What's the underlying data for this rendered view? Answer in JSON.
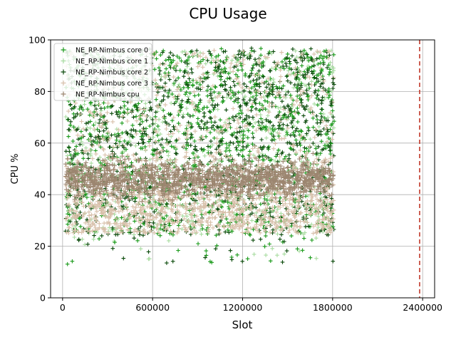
{
  "chart_data": {
    "type": "scatter",
    "title": "CPU Usage",
    "xlabel": "Slot",
    "ylabel": "CPU %",
    "xlim": [
      -80000,
      2480000
    ],
    "ylim": [
      0,
      100
    ],
    "xticks": [
      0,
      600000,
      1200000,
      1800000,
      2400000
    ],
    "xtick_labels": [
      "0",
      "600000",
      "1200000",
      "1800000",
      "2400000"
    ],
    "yticks": [
      0,
      20,
      40,
      60,
      80,
      100
    ],
    "ytick_labels": [
      "0",
      "20",
      "40",
      "60",
      "80",
      "100"
    ],
    "grid": true,
    "legend_position": "top-left",
    "marker": "+",
    "x_range": [
      20000,
      1810000
    ],
    "vline": {
      "x": 2380000,
      "color": "#c0392b",
      "style": "dashed"
    },
    "series": [
      {
        "name": "NE_RP-Nimbus core 0",
        "color": "#1a9a1a",
        "y_range": [
          13,
          97
        ]
      },
      {
        "name": "NE_RP-Nimbus core 1",
        "color": "#a8dca0",
        "y_range": [
          15,
          97
        ]
      },
      {
        "name": "NE_RP-Nimbus core 2",
        "color": "#0a4a0a",
        "y_range": [
          13,
          97
        ]
      },
      {
        "name": "NE_RP-Nimbus core 3",
        "color": "#d8c0aa",
        "y_range": [
          20,
          96
        ]
      },
      {
        "name": "NE_RP-Nimbus cpu",
        "color": "#9c8670",
        "y_range": [
          35,
          56
        ]
      }
    ]
  }
}
